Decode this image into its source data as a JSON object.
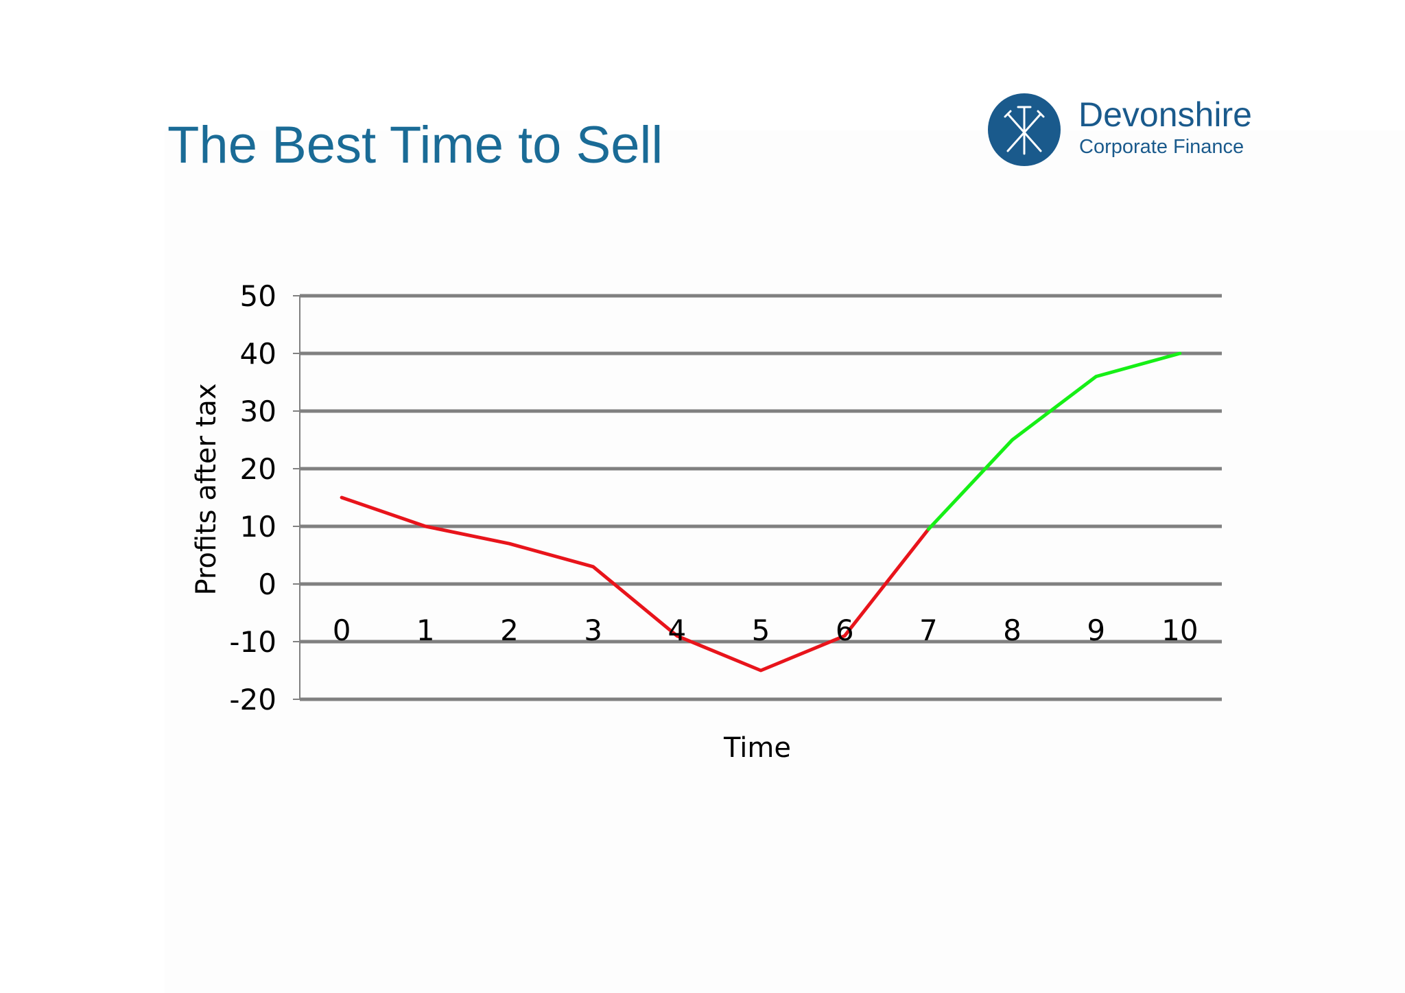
{
  "slide": {
    "title": "The Best Time to Sell"
  },
  "logo": {
    "name": "Devonshire",
    "subtitle": "Corporate Finance",
    "icon": "crossed-nails-icon",
    "color": "#1a5a8c"
  },
  "chart_data": {
    "type": "line",
    "title": "",
    "xlabel": "Time",
    "ylabel": "Profits after tax",
    "x": [
      0,
      1,
      2,
      3,
      4,
      5,
      6,
      7,
      8,
      9,
      10
    ],
    "values": [
      15,
      10,
      7,
      3,
      -9,
      -15,
      -9,
      9.5,
      25,
      36,
      40
    ],
    "xlim": [
      -0.5,
      10.5
    ],
    "ylim": [
      -20,
      50
    ],
    "yticks": [
      50,
      40,
      30,
      20,
      10,
      0,
      -10,
      -20
    ],
    "xticks": [
      0,
      1,
      2,
      3,
      4,
      5,
      6,
      7,
      8,
      9,
      10
    ],
    "x_tick_labels_at_y": -8,
    "grid": true,
    "legend": "none",
    "segments": [
      {
        "from": 0,
        "to": 7,
        "color": "#e8141b"
      },
      {
        "from": 7,
        "to": 10,
        "color": "#16ef16"
      }
    ],
    "colors": {
      "grid": "#808080",
      "axis": "#808080",
      "text": "#000000"
    }
  }
}
